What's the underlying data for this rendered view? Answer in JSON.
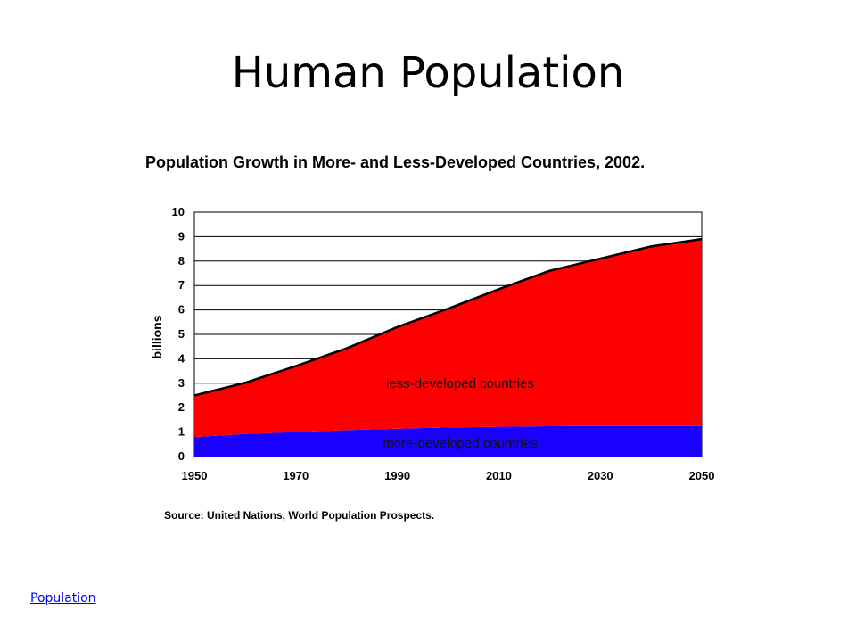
{
  "slide": {
    "title": "Human Population",
    "footer_link": "Population"
  },
  "colors": {
    "less_developed": "#ff0000",
    "more_developed": "#1a00ff",
    "outline": "#000000",
    "grid": "#000000"
  },
  "chart_data": {
    "type": "area",
    "stacked": true,
    "title": "Population Growth in More- and Less-Developed Countries, 2002.",
    "ylabel": "billions",
    "xlabel": "",
    "source": "Source: United Nations, World Population Prospects.",
    "xlim": [
      1950,
      2050
    ],
    "ylim": [
      0,
      10
    ],
    "x_ticks": [
      1950,
      1970,
      1990,
      2010,
      2030,
      2050
    ],
    "y_ticks": [
      0,
      1,
      2,
      3,
      4,
      5,
      6,
      7,
      8,
      9,
      10
    ],
    "grid": true,
    "x": [
      1950,
      1960,
      1970,
      1980,
      1990,
      2000,
      2010,
      2020,
      2030,
      2040,
      2050
    ],
    "series": [
      {
        "name": "more-developed countries",
        "color_key": "more_developed",
        "values": [
          0.8,
          0.92,
          1.0,
          1.08,
          1.14,
          1.19,
          1.22,
          1.24,
          1.25,
          1.25,
          1.25
        ]
      },
      {
        "name": "less-developed countries",
        "color_key": "less_developed",
        "values": [
          1.7,
          2.1,
          2.7,
          3.35,
          4.16,
          4.86,
          5.63,
          6.36,
          6.85,
          7.35,
          7.65
        ]
      }
    ]
  }
}
